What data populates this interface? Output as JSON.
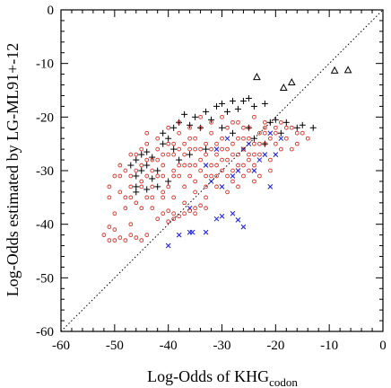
{
  "chart_data": {
    "type": "scatter",
    "xlabel": "Log-Odds of KHG",
    "xlabel_subscript": "codon",
    "ylabel": "Log-Odds estimated by LG-ML91+-12",
    "xlim": [
      -60,
      0
    ],
    "ylim": [
      -60,
      0
    ],
    "x_ticks": [
      -60,
      -50,
      -40,
      -30,
      -20,
      -10,
      0
    ],
    "y_ticks": [
      -60,
      -50,
      -40,
      -30,
      -20,
      -10,
      0
    ],
    "x_tick_labels": [
      "-60",
      "-50",
      "-40",
      "-30",
      "-20",
      "-10",
      "0"
    ],
    "y_tick_labels": [
      "-60",
      "-50",
      "-40",
      "-30",
      "-20",
      "-10",
      "0"
    ],
    "diagonal": {
      "from": [
        -60,
        -60
      ],
      "to": [
        0,
        0
      ],
      "style": "dotted"
    },
    "grid": false,
    "legend": "none",
    "series": [
      {
        "marker": "triangle",
        "color": "#000000",
        "points": [
          [
            -23.5,
            -12.5
          ],
          [
            -18.5,
            -14.5
          ],
          [
            -17,
            -13.5
          ],
          [
            -9,
            -11.3
          ],
          [
            -6.5,
            -11.2
          ]
        ]
      },
      {
        "marker": "plus",
        "color": "#000000",
        "points": [
          [
            -46,
            -28
          ],
          [
            -45,
            -27
          ],
          [
            -44,
            -26.5
          ],
          [
            -43,
            -27.5
          ],
          [
            -44,
            -29
          ],
          [
            -45,
            -30
          ],
          [
            -46,
            -31
          ],
          [
            -43,
            -31.5
          ],
          [
            -42,
            -30
          ],
          [
            -41,
            -25
          ],
          [
            -41,
            -23
          ],
          [
            -40,
            -24
          ],
          [
            -39,
            -26
          ],
          [
            -39,
            -22
          ],
          [
            -38,
            -21
          ],
          [
            -37,
            -19.5
          ],
          [
            -36,
            -21.5
          ],
          [
            -35,
            -20
          ],
          [
            -34,
            -22
          ],
          [
            -33,
            -19
          ],
          [
            -32,
            -20.5
          ],
          [
            -31,
            -18
          ],
          [
            -30,
            -17.5
          ],
          [
            -29,
            -19
          ],
          [
            -28,
            -17
          ],
          [
            -27,
            -18.5
          ],
          [
            -26,
            -17
          ],
          [
            -25,
            -16.5
          ],
          [
            -24,
            -18
          ],
          [
            -22,
            -17.5
          ],
          [
            -21,
            -21
          ],
          [
            -20,
            -20.5
          ],
          [
            -19,
            -23
          ],
          [
            -18,
            -21
          ],
          [
            -16,
            -22
          ],
          [
            -15,
            -21.5
          ],
          [
            -13,
            -22
          ],
          [
            -44,
            -33.5
          ],
          [
            -46,
            -34
          ],
          [
            -42,
            -33
          ],
          [
            -40,
            -32
          ],
          [
            -38,
            -28
          ],
          [
            -36,
            -27
          ],
          [
            -33,
            -26
          ],
          [
            -30,
            -22
          ],
          [
            -28,
            -23
          ],
          [
            -25,
            -22
          ],
          [
            -24,
            -24
          ],
          [
            -22,
            -25
          ],
          [
            -46,
            -33
          ],
          [
            -47,
            -29
          ]
        ]
      },
      {
        "marker": "x",
        "color": "#1a1aee",
        "points": [
          [
            -40,
            -44
          ],
          [
            -38,
            -42
          ],
          [
            -36,
            -41.5
          ],
          [
            -35.5,
            -41.5
          ],
          [
            -33,
            -41.5
          ],
          [
            -31,
            -39
          ],
          [
            -30,
            -38.5
          ],
          [
            -28,
            -38
          ],
          [
            -27,
            -39.2
          ],
          [
            -26,
            -40.5
          ],
          [
            -36,
            -37
          ],
          [
            -30,
            -33
          ],
          [
            -28,
            -31
          ],
          [
            -24,
            -30
          ],
          [
            -22,
            -27
          ],
          [
            -20,
            -27
          ],
          [
            -33,
            -29
          ],
          [
            -31,
            -26
          ],
          [
            -29,
            -24
          ],
          [
            -26,
            -26
          ],
          [
            -23,
            -28
          ],
          [
            -21,
            -23
          ],
          [
            -25,
            -25
          ],
          [
            -19,
            -24
          ],
          [
            -27,
            -30
          ],
          [
            -32,
            -32
          ],
          [
            -21,
            -33
          ]
        ]
      },
      {
        "marker": "circle",
        "color": "#e8261c",
        "points": [
          [
            -52,
            -42
          ],
          [
            -51,
            -43
          ],
          [
            -50,
            -43
          ],
          [
            -49,
            -42.5
          ],
          [
            -48,
            -43
          ],
          [
            -47,
            -42
          ],
          [
            -46,
            -42.5
          ],
          [
            -45,
            -43
          ],
          [
            -44,
            -42
          ],
          [
            -51,
            -40.5
          ],
          [
            -50,
            -41
          ],
          [
            -47,
            -40
          ],
          [
            -41,
            -38
          ],
          [
            -40,
            -37.5
          ],
          [
            -39,
            -38
          ],
          [
            -38,
            -38.5
          ],
          [
            -37,
            -38
          ],
          [
            -36,
            -37.5
          ],
          [
            -35,
            -37
          ],
          [
            -34,
            -36.5
          ],
          [
            -33,
            -37
          ],
          [
            -42,
            -39
          ],
          [
            -40,
            -39.5
          ],
          [
            -39,
            -39
          ],
          [
            -35,
            -38
          ],
          [
            -51,
            -35
          ],
          [
            -50,
            -31
          ],
          [
            -49,
            -34
          ],
          [
            -49,
            -29
          ],
          [
            -48,
            -30
          ],
          [
            -48,
            -35
          ],
          [
            -47,
            -33
          ],
          [
            -47,
            -27
          ],
          [
            -46,
            -30
          ],
          [
            -45,
            -32
          ],
          [
            -45,
            -29
          ],
          [
            -44,
            -31
          ],
          [
            -44,
            -25
          ],
          [
            -43,
            -28
          ],
          [
            -43,
            -33
          ],
          [
            -42,
            -26
          ],
          [
            -42,
            -31
          ],
          [
            -41,
            -29
          ],
          [
            -41,
            -34
          ],
          [
            -40,
            -27
          ],
          [
            -40,
            -33
          ],
          [
            -39,
            -25
          ],
          [
            -39,
            -30
          ],
          [
            -38,
            -23
          ],
          [
            -38,
            -31
          ],
          [
            -37,
            -27
          ],
          [
            -37,
            -33
          ],
          [
            -36,
            -24
          ],
          [
            -36,
            -29
          ],
          [
            -35,
            -26
          ],
          [
            -35,
            -32
          ],
          [
            -34,
            -22
          ],
          [
            -34,
            -28
          ],
          [
            -33,
            -25
          ],
          [
            -33,
            -33
          ],
          [
            -32,
            -23
          ],
          [
            -32,
            -29
          ],
          [
            -31,
            -27
          ],
          [
            -31,
            -31
          ],
          [
            -30,
            -24
          ],
          [
            -30,
            -28
          ],
          [
            -29,
            -22
          ],
          [
            -29,
            -26
          ],
          [
            -28,
            -25
          ],
          [
            -28,
            -30
          ],
          [
            -27,
            -21
          ],
          [
            -27,
            -27
          ],
          [
            -26,
            -24
          ],
          [
            -26,
            -29
          ],
          [
            -25,
            -22
          ],
          [
            -25,
            -27
          ],
          [
            -24,
            -25
          ],
          [
            -24,
            -29
          ],
          [
            -23,
            -23
          ],
          [
            -23,
            -27
          ],
          [
            -22,
            -21
          ],
          [
            -22,
            -25
          ],
          [
            -21,
            -24
          ],
          [
            -21,
            -28
          ],
          [
            -20,
            -22
          ],
          [
            -20,
            -25
          ],
          [
            -19,
            -21
          ],
          [
            -18,
            -24
          ],
          [
            -17,
            -22
          ],
          [
            -16,
            -25
          ],
          [
            -15,
            -23
          ],
          [
            -14,
            -24
          ],
          [
            -46,
            -27
          ],
          [
            -45,
            -26
          ],
          [
            -44,
            -28
          ],
          [
            -43,
            -30
          ],
          [
            -42,
            -28
          ],
          [
            -41,
            -27
          ],
          [
            -40,
            -25
          ],
          [
            -39,
            -27
          ],
          [
            -38,
            -26
          ],
          [
            -37,
            -25
          ],
          [
            -36,
            -26
          ],
          [
            -35,
            -24
          ],
          [
            -34,
            -26
          ],
          [
            -33,
            -27
          ],
          [
            -32,
            -26
          ],
          [
            -31,
            -25
          ],
          [
            -30,
            -26
          ],
          [
            -29,
            -28
          ],
          [
            -28,
            -27
          ],
          [
            -27,
            -24
          ],
          [
            -26,
            -26
          ],
          [
            -25,
            -24
          ],
          [
            -24,
            -27
          ],
          [
            -23,
            -25
          ],
          [
            -22,
            -23
          ],
          [
            -38,
            -29
          ],
          [
            -36,
            -31
          ],
          [
            -34,
            -30
          ],
          [
            -32,
            -31
          ],
          [
            -30,
            -30
          ],
          [
            -28,
            -32
          ],
          [
            -26,
            -31
          ],
          [
            -24,
            -32
          ],
          [
            -41,
            -35
          ],
          [
            -39,
            -35
          ],
          [
            -37,
            -36
          ],
          [
            -35,
            -34
          ],
          [
            -33,
            -35
          ],
          [
            -31,
            -33
          ],
          [
            -29,
            -34
          ],
          [
            -27,
            -33
          ],
          [
            -47,
            -31
          ],
          [
            -46,
            -36
          ],
          [
            -44,
            -35
          ],
          [
            -43,
            -37
          ],
          [
            -45,
            -37
          ],
          [
            -48,
            -37
          ],
          [
            -50,
            -38
          ],
          [
            -40,
            -22
          ],
          [
            -38,
            -21
          ],
          [
            -36,
            -22
          ],
          [
            -34,
            -20
          ],
          [
            -32,
            -21
          ],
          [
            -30,
            -20
          ],
          [
            -28,
            -21
          ],
          [
            -26,
            -22
          ],
          [
            -24,
            -20
          ],
          [
            -22,
            -22
          ],
          [
            -20,
            -23
          ],
          [
            -18,
            -22
          ],
          [
            -16,
            -23
          ],
          [
            -19,
            -26
          ],
          [
            -17,
            -26
          ],
          [
            -21,
            -30
          ],
          [
            -23,
            -31
          ],
          [
            -25,
            -30
          ],
          [
            -42,
            -24
          ],
          [
            -44,
            -23
          ],
          [
            -43,
            -35
          ],
          [
            -37,
            -29
          ],
          [
            -33,
            -31
          ],
          [
            -29,
            -31
          ],
          [
            -27,
            -29
          ],
          [
            -25,
            -28
          ],
          [
            -31,
            -29
          ],
          [
            -35,
            -29
          ],
          [
            -39,
            -31
          ],
          [
            -41,
            -31
          ],
          [
            -45,
            -33
          ],
          [
            -47,
            -35
          ],
          [
            -49,
            -31
          ],
          [
            -51,
            -33
          ]
        ]
      }
    ]
  }
}
